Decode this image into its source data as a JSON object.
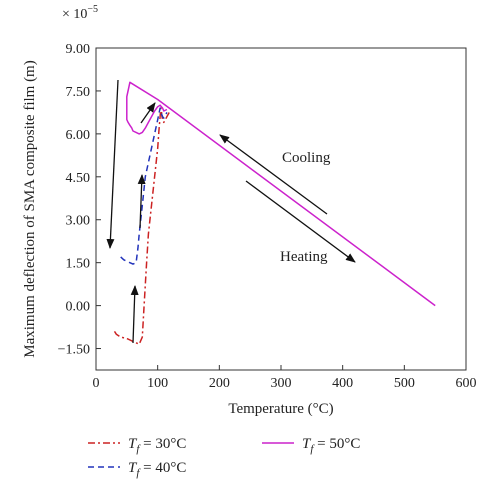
{
  "chart_data": {
    "type": "line",
    "title": "",
    "xlabel": "Temperature (°C)",
    "ylabel": "Maximum deflection of SMA composite film (m)",
    "y_multiplier": "× 10",
    "y_multiplier_exp": "−5",
    "xlim": [
      0,
      600
    ],
    "ylim": [
      -2.25,
      9.0
    ],
    "xticks": [
      0,
      100,
      200,
      300,
      400,
      500,
      600
    ],
    "xtick_labels": [
      "0",
      "100",
      "200",
      "300",
      "400",
      "500",
      "600"
    ],
    "yticks": [
      -1.5,
      0,
      1.5,
      3,
      4.5,
      6,
      7.5,
      9
    ],
    "ytick_labels": [
      "−1.50",
      "0.00",
      "1.50",
      "3.00",
      "4.50",
      "6.00",
      "7.50",
      "9.00"
    ],
    "grid": false,
    "legend_position": "bottom",
    "series": [
      {
        "name_symbol": "T",
        "name_sub": "f",
        "name_rest": " = 30°C",
        "color": "#cc2222",
        "dash": "7,3,2,3",
        "x": [
          30,
          33,
          40,
          50,
          60,
          70,
          75,
          78,
          82,
          85,
          90,
          95,
          100,
          102,
          104,
          105,
          106,
          107,
          108,
          110,
          115,
          120
        ],
        "y": [
          -0.9,
          -1.0,
          -1.1,
          -1.15,
          -1.25,
          -1.35,
          -1.1,
          0.0,
          1.5,
          2.5,
          3.5,
          4.5,
          5.5,
          6.1,
          6.6,
          6.9,
          6.8,
          6.6,
          6.5,
          6.4,
          6.6,
          6.8
        ]
      },
      {
        "name_symbol": "T",
        "name_sub": "f",
        "name_rest": " = 40°C",
        "color": "#2233bb",
        "dash": "6,4",
        "x": [
          40,
          45,
          50,
          55,
          60,
          65,
          68,
          70,
          75,
          80,
          85,
          90,
          95,
          100,
          104,
          106,
          108,
          110,
          115
        ],
        "y": [
          1.7,
          1.6,
          1.55,
          1.5,
          1.45,
          1.5,
          2.0,
          2.5,
          3.5,
          4.5,
          5.0,
          5.5,
          6.0,
          6.5,
          6.9,
          6.7,
          6.6,
          6.55,
          6.75
        ]
      },
      {
        "name_symbol": "T",
        "name_sub": "f",
        "name_rest": " = 50°C",
        "color": "#cc22cc",
        "dash": "",
        "x": [
          550,
          100,
          55,
          50,
          50,
          52,
          55,
          58,
          60,
          65,
          70,
          75,
          80,
          85,
          90,
          95,
          100,
          104,
          108,
          110,
          115
        ],
        "y": [
          0.0,
          7.2,
          7.8,
          7.3,
          6.5,
          6.4,
          6.3,
          6.2,
          6.1,
          6.05,
          6.0,
          6.05,
          6.2,
          6.4,
          6.6,
          6.8,
          6.95,
          7.0,
          6.9,
          6.8,
          6.85
        ]
      }
    ],
    "annotations": [
      {
        "text": "Cooling"
      },
      {
        "text": "Heating"
      }
    ]
  }
}
